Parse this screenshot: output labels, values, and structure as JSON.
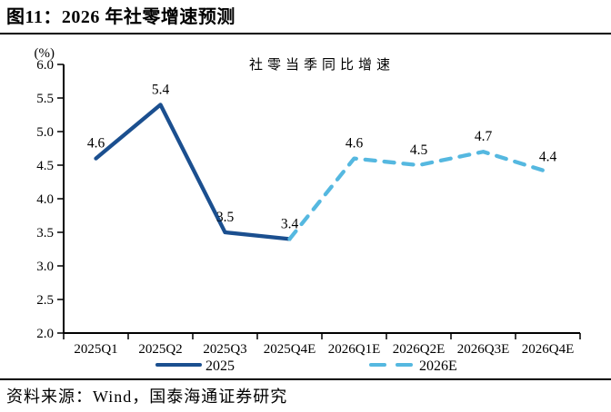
{
  "header": {
    "title": "图11：2026 年社零增速预测"
  },
  "footer": {
    "source": "资料来源：Wind，国泰海通证券研究"
  },
  "chart_data": {
    "type": "line",
    "title": "社零当季同比增速",
    "unit_label": "(%)",
    "categories": [
      "2025Q1",
      "2025Q2",
      "2025Q3",
      "2025Q4E",
      "2026Q1E",
      "2026Q2E",
      "2026Q3E",
      "2026Q4E"
    ],
    "series": [
      {
        "name": "2025",
        "line_style": "solid",
        "color": "#1B4F8F",
        "values": [
          4.6,
          5.4,
          3.5,
          3.4,
          null,
          null,
          null,
          null
        ],
        "labels": [
          "4.6",
          "5.4",
          "3.5",
          "3.4",
          null,
          null,
          null,
          null
        ]
      },
      {
        "name": "2026E",
        "line_style": "dashed",
        "color": "#55B8E0",
        "values": [
          null,
          null,
          null,
          3.4,
          4.6,
          4.5,
          4.7,
          4.4
        ],
        "labels": [
          null,
          null,
          null,
          null,
          "4.6",
          "4.5",
          "4.7",
          "4.4"
        ]
      }
    ],
    "ylim": [
      2.0,
      6.0
    ],
    "ytick_step": 0.5,
    "grid": false,
    "legend_position": "bottom",
    "axis_color": "#000000",
    "text_color": "#000000"
  }
}
